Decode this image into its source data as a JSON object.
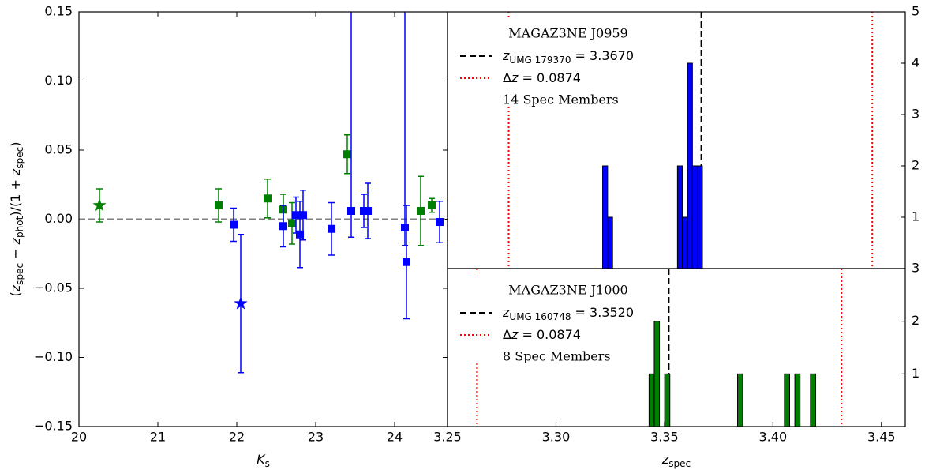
{
  "chart_data": [
    {
      "type": "scatter",
      "xlabel": [
        {
          "t": "K",
          "s": "i"
        },
        {
          "t": "s",
          "s": "sub"
        }
      ],
      "ylabel": [
        {
          "t": "(",
          "s": ""
        },
        {
          "t": "z",
          "s": "i"
        },
        {
          "t": "spec",
          "s": "sub"
        },
        {
          "t": " − ",
          "s": ""
        },
        {
          "t": "z",
          "s": "i"
        },
        {
          "t": "phot",
          "s": "sub"
        },
        {
          "t": ")/(1 + ",
          "s": ""
        },
        {
          "t": "z",
          "s": "i"
        },
        {
          "t": "spec",
          "s": "sub"
        },
        {
          "t": ")",
          "s": ""
        }
      ],
      "xlim": [
        20,
        24.67
      ],
      "xticks": [
        20,
        21,
        22,
        23,
        24
      ],
      "ylim": [
        -0.15,
        0.15
      ],
      "yticks": [
        {
          "value": -0.15,
          "label": "−0.15"
        },
        {
          "value": -0.1,
          "label": "−0.10"
        },
        {
          "value": -0.05,
          "label": "−0.05"
        },
        {
          "value": 0,
          "label": "0.00"
        },
        {
          "value": 0.05,
          "label": "0.05"
        },
        {
          "value": 0.1,
          "label": "0.10"
        },
        {
          "value": 0.15,
          "label": "0.15"
        }
      ],
      "hline": {
        "y": 0,
        "color": "#808080",
        "style": "dashed"
      },
      "series": [
        {
          "color": "#008000",
          "marker": "star",
          "x": [
            20.26
          ],
          "y": [
            0.01
          ],
          "yerr_low": [
            0.012
          ],
          "yerr_high": [
            0.012
          ]
        },
        {
          "color": "#0000ff",
          "marker": "star",
          "x": [
            22.05
          ],
          "y": [
            -0.061
          ],
          "yerr_low": [
            0.05
          ],
          "yerr_high": [
            0.05
          ]
        },
        {
          "color": "#008000",
          "marker": "square",
          "x": [
            21.77,
            22.39,
            22.59,
            22.7,
            23.4,
            24.33,
            24.47
          ],
          "y": [
            0.01,
            0.015,
            0.007,
            -0.003,
            0.047,
            0.006,
            0.01
          ],
          "yerr_low": [
            0.012,
            0.014,
            0.011,
            0.015,
            0.014,
            0.025,
            0.005
          ],
          "yerr_high": [
            0.012,
            0.014,
            0.011,
            0.015,
            0.014,
            0.025,
            0.005
          ]
        },
        {
          "color": "#0000ff",
          "marker": "square",
          "x": [
            21.96,
            22.59,
            22.75,
            22.8,
            22.84,
            23.2,
            23.45,
            23.61,
            23.66,
            24.13,
            24.15,
            24.57
          ],
          "y": [
            -0.004,
            -0.005,
            0.003,
            -0.011,
            0.003,
            -0.007,
            0.006,
            0.006,
            0.006,
            -0.006,
            -0.031,
            -0.002
          ],
          "yerr_low": [
            0.012,
            0.015,
            0.013,
            0.024,
            0.018,
            0.019,
            0.019,
            0.012,
            0.02,
            0.013,
            0.041,
            0.015
          ],
          "yerr_high": [
            0.012,
            0.015,
            0.013,
            0.024,
            0.018,
            0.019,
            0.2,
            0.012,
            0.02,
            0.2,
            0.041,
            0.015
          ]
        }
      ]
    },
    {
      "type": "histogram",
      "color": "#0000ff",
      "xlim": [
        3.25,
        3.461
      ],
      "ylim": [
        0,
        5
      ],
      "yticks": [
        1,
        2,
        3,
        4,
        5
      ],
      "bins": [
        3.3215,
        3.3238,
        3.3261,
        3.3284,
        3.3307,
        3.333,
        3.3353,
        3.3376,
        3.3399,
        3.3422,
        3.3445,
        3.3468,
        3.3491,
        3.3514,
        3.3537,
        3.356,
        3.3583,
        3.3606,
        3.3629,
        3.3652,
        3.3675
      ],
      "counts": [
        2,
        1,
        0,
        0,
        0,
        0,
        0,
        0,
        0,
        0,
        0,
        0,
        0,
        0,
        0,
        2,
        1,
        4,
        2,
        2
      ],
      "vlines": [
        {
          "x": 3.367,
          "color": "#000000",
          "style": "dashed",
          "label": [
            {
              "t": "z",
              "s": "i"
            },
            {
              "t": "UMG 179370",
              "s": "sub"
            },
            {
              "t": " = 3.3670",
              "s": ""
            }
          ]
        },
        {
          "x": 3.2782,
          "color": "#ff0000",
          "style": "dotted",
          "label": [
            {
              "t": "Δ",
              "s": ""
            },
            {
              "t": "z",
              "s": "i"
            },
            {
              "t": " = 0.0874",
              "s": ""
            }
          ]
        },
        {
          "x": 3.4458,
          "color": "#ff0000",
          "style": "dotted"
        }
      ],
      "legend_title": "MAGAZ3NE J0959",
      "legend_note": "14 Spec Members"
    },
    {
      "type": "histogram",
      "color": "#008000",
      "xlabel": [
        {
          "t": "z",
          "s": "i"
        },
        {
          "t": "spec",
          "s": "sub"
        }
      ],
      "xlim": [
        3.25,
        3.461
      ],
      "xticks": [
        {
          "value": 3.25,
          "label": "3.25"
        },
        {
          "value": 3.3,
          "label": "3.30"
        },
        {
          "value": 3.35,
          "label": "3.35"
        },
        {
          "value": 3.4,
          "label": "3.40"
        },
        {
          "value": 3.45,
          "label": "3.45"
        }
      ],
      "ylim": [
        0,
        3
      ],
      "yticks": [
        1,
        2,
        3
      ],
      "bins": [
        3.3429,
        3.3453,
        3.3477,
        3.3501,
        3.3525,
        3.3549,
        3.3573,
        3.3597,
        3.3621,
        3.3645,
        3.3669,
        3.3693,
        3.3717,
        3.3741,
        3.3765,
        3.3789,
        3.3813,
        3.3837,
        3.3861,
        3.3885,
        3.3909,
        3.3933,
        3.3957,
        3.3981,
        3.4005,
        3.4029,
        3.4053,
        3.4077,
        3.4101,
        3.4125,
        3.4149,
        3.4173,
        3.4197
      ],
      "counts": [
        1,
        2,
        0,
        1,
        0,
        0,
        0,
        0,
        0,
        0,
        0,
        0,
        0,
        0,
        0,
        0,
        0,
        1,
        0,
        0,
        0,
        0,
        0,
        0,
        0,
        0,
        1,
        0,
        1,
        0,
        0,
        1
      ],
      "vlines": [
        {
          "x": 3.352,
          "color": "#000000",
          "style": "dashed",
          "label": [
            {
              "t": "z",
              "s": "i"
            },
            {
              "t": "UMG 160748",
              "s": "sub"
            },
            {
              "t": " = 3.3520",
              "s": ""
            }
          ]
        },
        {
          "x": 3.2636,
          "color": "#ff0000",
          "style": "dotted",
          "label": [
            {
              "t": "Δ",
              "s": ""
            },
            {
              "t": "z",
              "s": "i"
            },
            {
              "t": " = 0.0874",
              "s": ""
            }
          ]
        },
        {
          "x": 3.4316,
          "color": "#ff0000",
          "style": "dotted"
        }
      ],
      "legend_title": "MAGAZ3NE J1000",
      "legend_note": "8 Spec Members"
    }
  ]
}
